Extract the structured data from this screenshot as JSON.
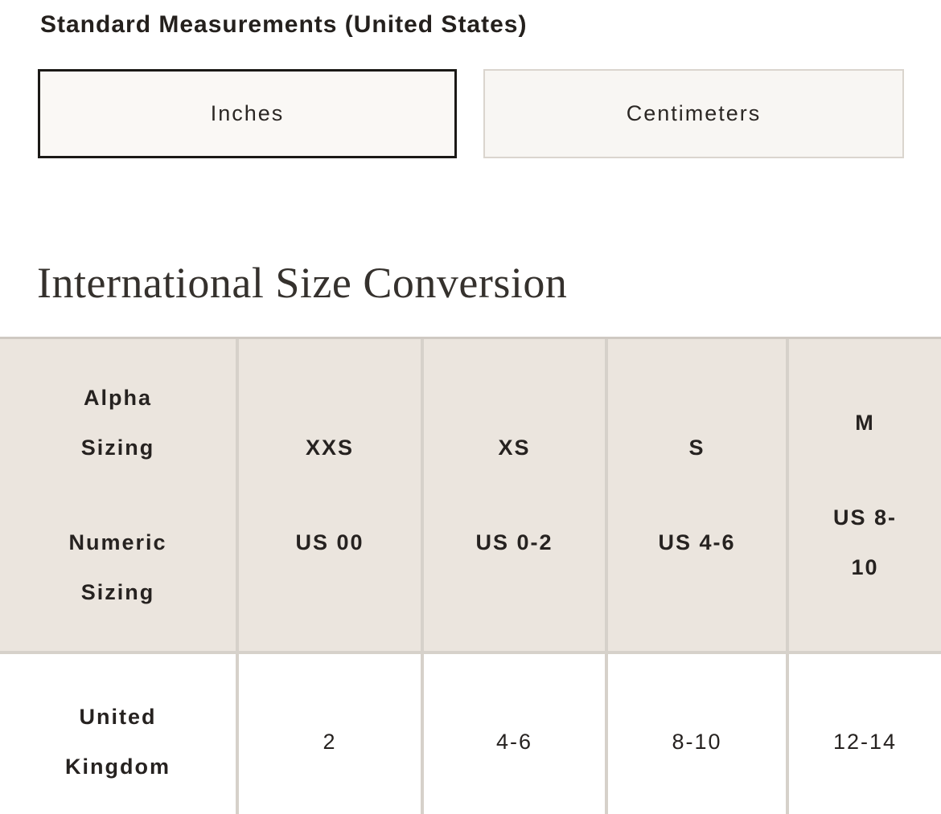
{
  "measurements": {
    "title": "Standard Measurements (United States)",
    "unit_buttons": [
      {
        "label": "Inches",
        "selected": true
      },
      {
        "label": "Centimeters",
        "selected": false
      }
    ]
  },
  "conversion": {
    "title": "International Size Conversion",
    "table": {
      "label_column": {
        "alpha_sizing_label": "Alpha\nSizing",
        "numeric_sizing_label": "Numeric\nSizing"
      },
      "columns": [
        {
          "alpha": "XXS",
          "numeric": "US 00",
          "uk": "2"
        },
        {
          "alpha": "XS",
          "numeric": "US 0-2",
          "uk": "4-6"
        },
        {
          "alpha": "S",
          "numeric": "US 4-6",
          "uk": "8-10"
        },
        {
          "alpha": "M",
          "numeric": "US 8-\n10",
          "uk": "12-14"
        }
      ],
      "uk_row_label": "United\nKingdom"
    }
  },
  "colors": {
    "header_bg": "#EBE5DE",
    "table_divider": "#D6D1CA",
    "table_top_border": "#CFC9C2",
    "selected_button_border": "#1B1916",
    "unselected_button_border": "#DAD5CE",
    "button_bg": "#FAF8F5",
    "text": "#24201D"
  }
}
